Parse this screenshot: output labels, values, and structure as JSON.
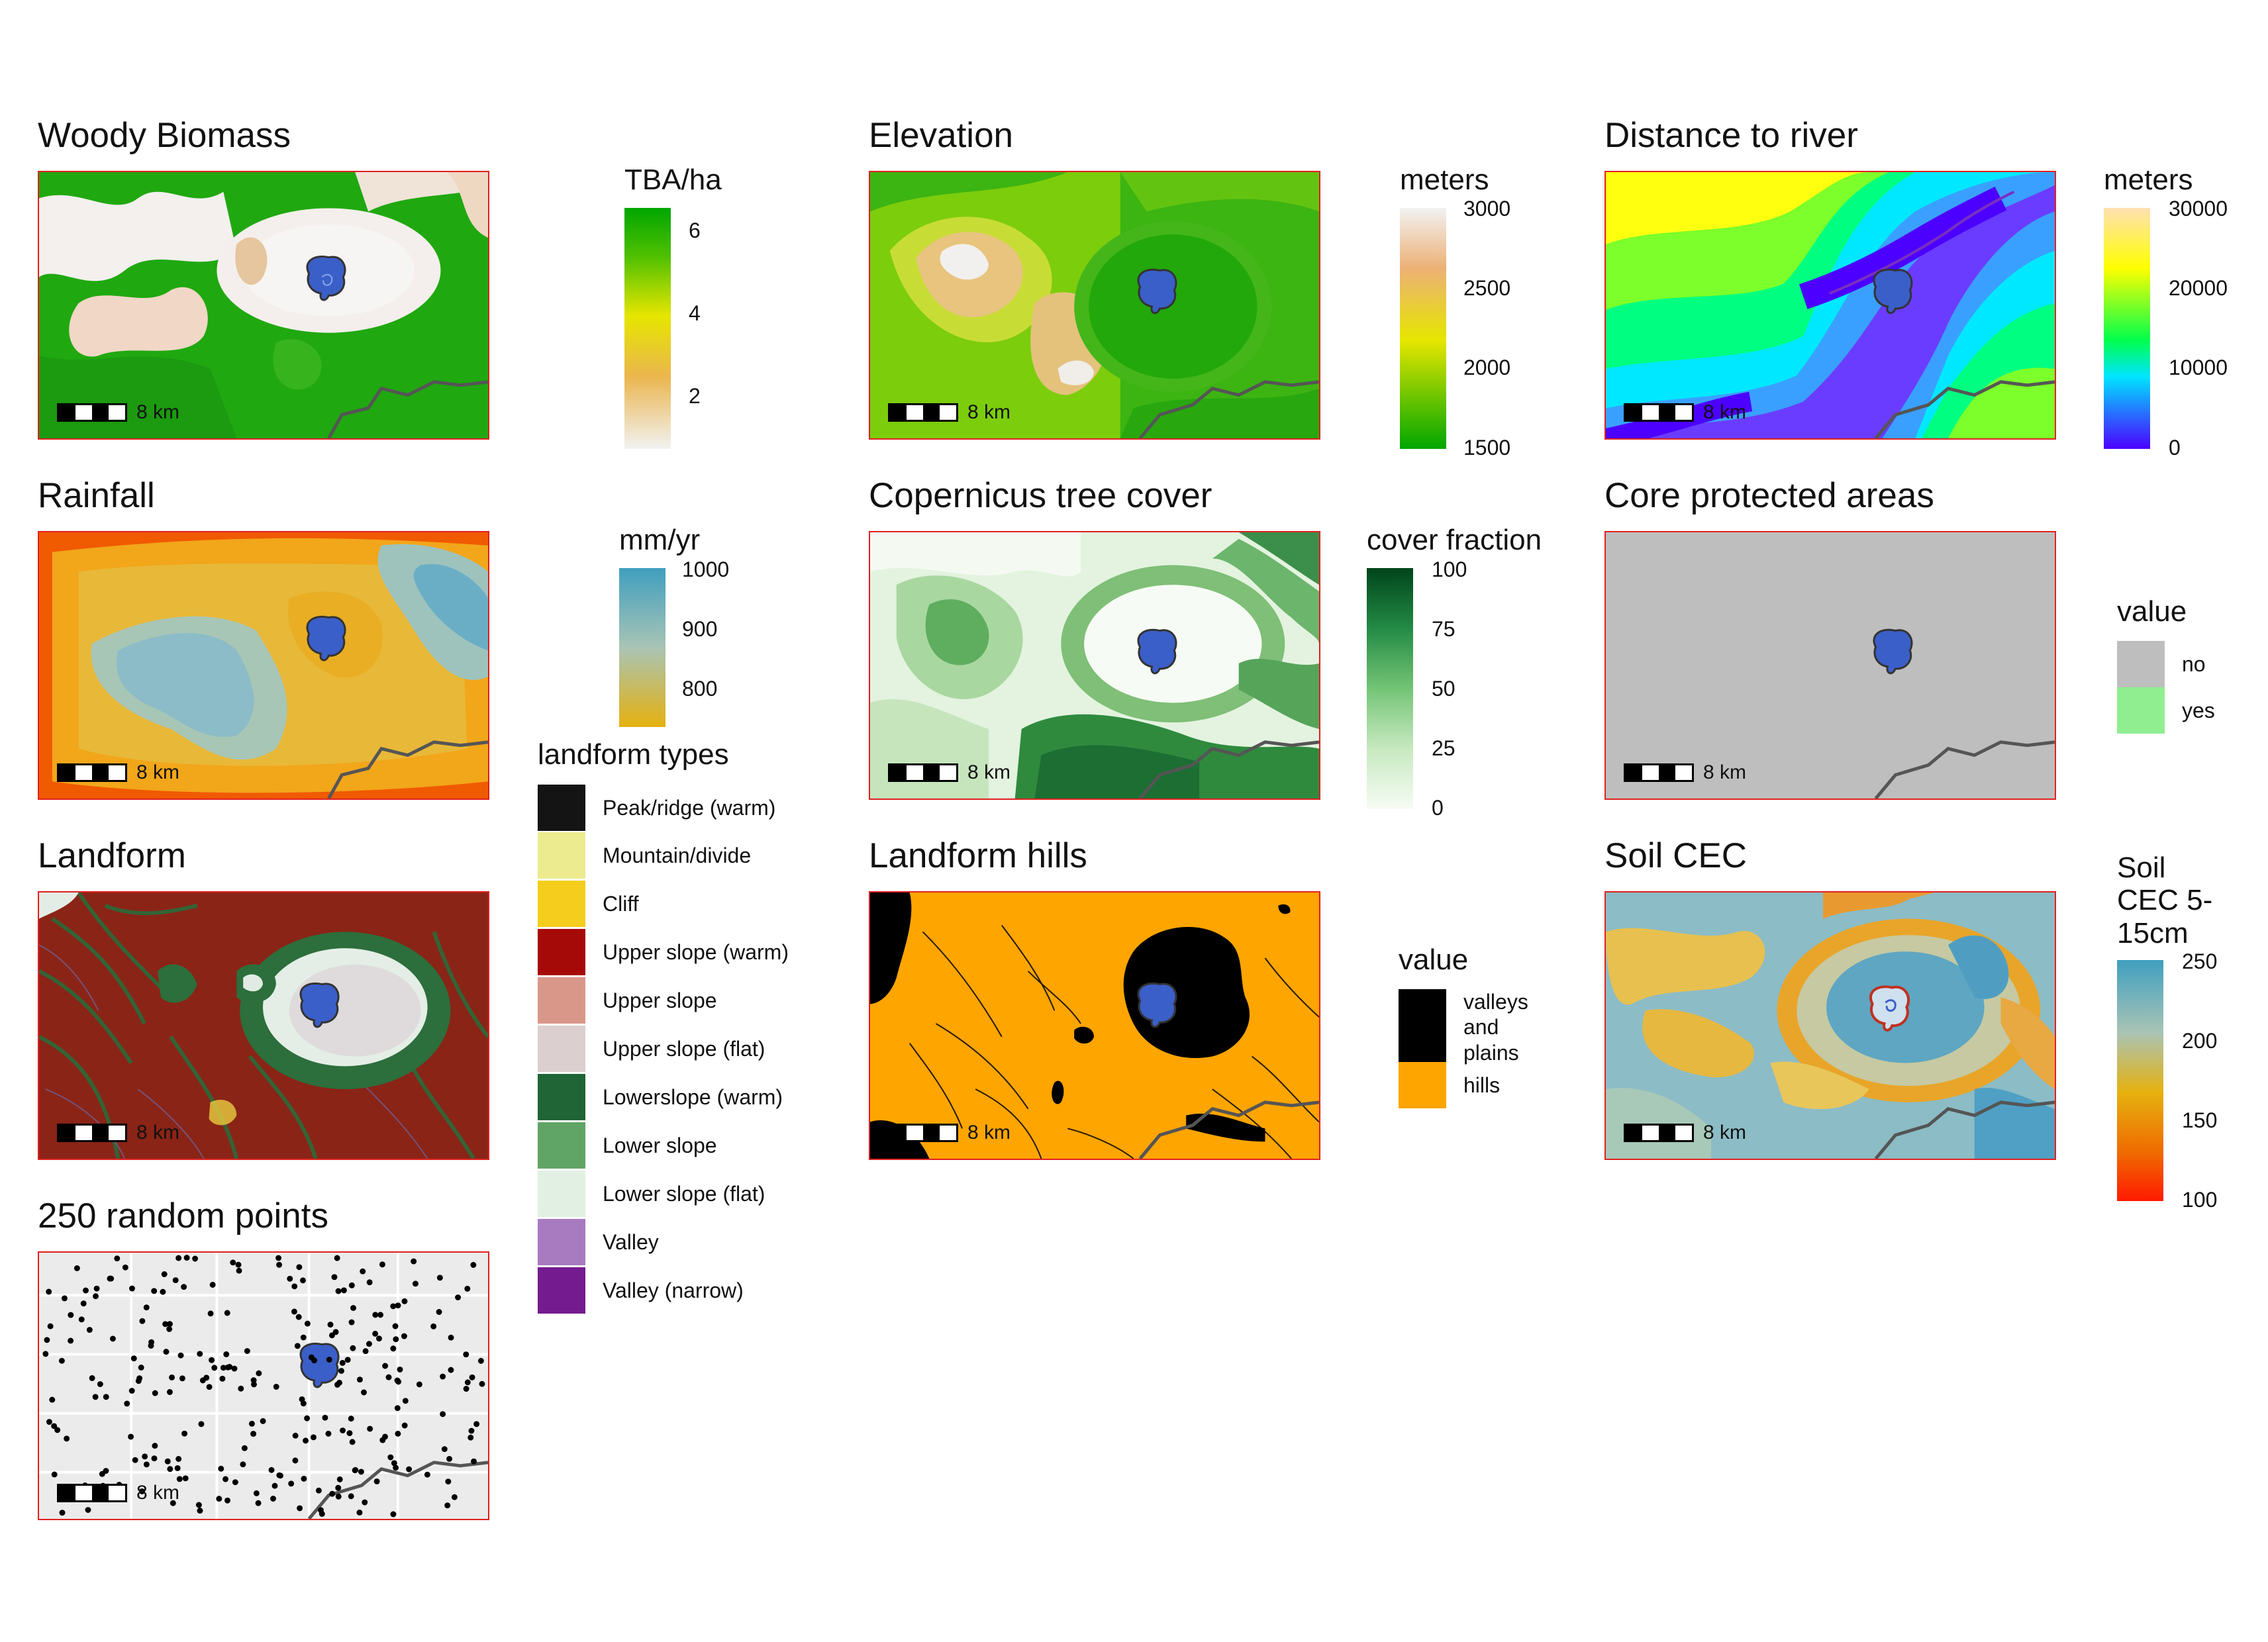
{
  "panels": {
    "woody_biomass": {
      "title": "Woody Biomass",
      "scale_label": "8 km",
      "legend_title": "TBA/ha",
      "ticks": [
        "6",
        "4",
        "2"
      ],
      "colors": [
        "#00a600",
        "#e6e600",
        "#eab64e",
        "#f2f2f2"
      ]
    },
    "elevation": {
      "title": "Elevation",
      "scale_label": "8 km",
      "legend_title": "meters",
      "ticks": [
        "3000",
        "2500",
        "2000",
        "1500"
      ],
      "colors": [
        "#f2f2f2",
        "#ecb176",
        "#e6e600",
        "#00a600"
      ]
    },
    "distance_to_river": {
      "title": "Distance to river",
      "scale_label": "8 km",
      "legend_title": "meters",
      "ticks": [
        "30000",
        "20000",
        "10000",
        "0"
      ],
      "colors": [
        "#ffe0b3",
        "#ffff00",
        "#00ff4d",
        "#00e5ff",
        "#4c00ff"
      ]
    },
    "rainfall": {
      "title": "Rainfall",
      "scale_label": "8 km",
      "legend_title": "mm/yr",
      "ticks": [
        "1000",
        "900",
        "800"
      ],
      "colors": [
        "#3f9fbf",
        "#a9c4b5",
        "#e5b10f"
      ]
    },
    "tree_cover": {
      "title": "Copernicus tree cover",
      "scale_label": "8 km",
      "legend_title": "cover fraction",
      "ticks": [
        "100",
        "75",
        "50",
        "25",
        "0"
      ],
      "colors": [
        "#00441b",
        "#238b45",
        "#74c476",
        "#c7e9c0",
        "#f7fcf5"
      ]
    },
    "core_protected": {
      "title": "Core protected areas",
      "scale_label": "8 km",
      "legend_title": "value",
      "keys": [
        {
          "label": "no",
          "color": "#bebebe"
        },
        {
          "label": "yes",
          "color": "#90ee90"
        }
      ]
    },
    "landform": {
      "title": "Landform",
      "scale_label": "8 km",
      "legend_title": "landform types",
      "keys": [
        {
          "label": "Peak/ridge (warm)",
          "color": "#141414"
        },
        {
          "label": "Mountain/divide",
          "color": "#eceb8f"
        },
        {
          "label": "Cliff",
          "color": "#f5cd1c"
        },
        {
          "label": "Upper slope (warm)",
          "color": "#a50a08"
        },
        {
          "label": "Upper slope",
          "color": "#d9978a"
        },
        {
          "label": "Upper slope (flat)",
          "color": "#dbd0cf"
        },
        {
          "label": "Lowerslope (warm)",
          "color": "#1f6535"
        },
        {
          "label": "Lower slope",
          "color": "#60a565"
        },
        {
          "label": "Lower slope (flat)",
          "color": "#e2f0e4"
        },
        {
          "label": "Valley",
          "color": "#a87ac0"
        },
        {
          "label": "Valley (narrow)",
          "color": "#741b8f"
        }
      ]
    },
    "landform_hills": {
      "title": "Landform hills",
      "scale_label": "8 km",
      "legend_title": "value",
      "keys": [
        {
          "label": "valleys and plains",
          "color": "#000000"
        },
        {
          "label": "hills",
          "color": "#ffa500"
        }
      ]
    },
    "soil_cec": {
      "title": "Soil CEC",
      "scale_label": "8 km",
      "legend_title": "Soil CEC 5-15cm",
      "ticks": [
        "250",
        "200",
        "150",
        "100"
      ],
      "colors": [
        "#3f9fbf",
        "#a9c4b5",
        "#e5b10f",
        "#f06a00",
        "#ff1a00"
      ]
    },
    "random_points": {
      "title": "250 random points",
      "scale_label": "8 km"
    }
  },
  "colors": {
    "panel_border": "#e02020",
    "lake_fill": "#3b5fc8",
    "boundary_line": "#555555"
  }
}
